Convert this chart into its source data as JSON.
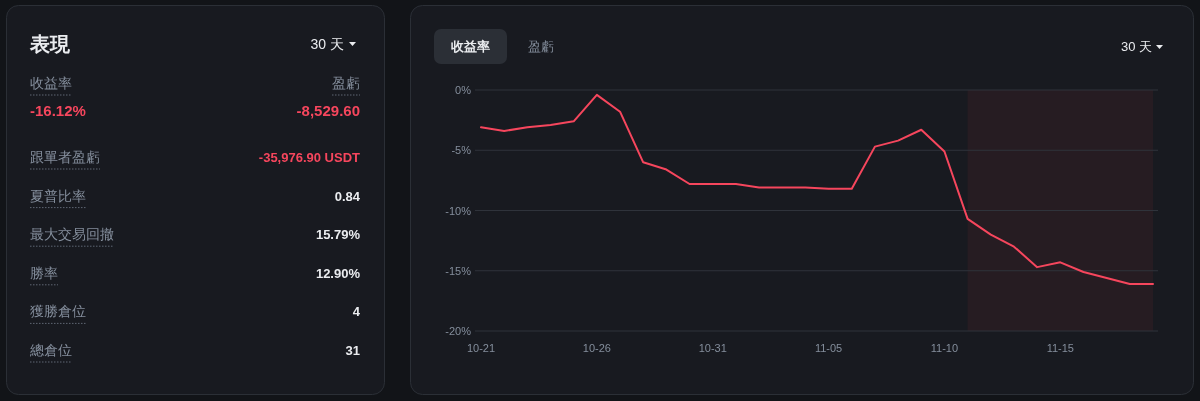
{
  "chart_data": [
    {
      "type": "other",
      "title": "表現",
      "annotations": [
        "30 天",
        "收益率",
        "盈虧",
        "-16.12%",
        "-8,529.60",
        "跟單者盈虧",
        "-35,976.90 USDT",
        "夏普比率",
        "0.84",
        "最大交易回撤",
        "15.79%",
        "勝率",
        "12.90%",
        "獲勝倉位",
        "4",
        "總倉位",
        "31"
      ]
    },
    {
      "type": "line",
      "annotations": [
        "收益率",
        "盈虧",
        "30 天"
      ],
      "x": [
        "--10-21",
        "--10-22",
        "--10-23",
        "--10-24",
        "--10-25",
        "--10-26",
        "--10-27",
        "--10-28",
        "--10-29",
        "--10-30",
        "--10-31",
        "--11-01",
        "--11-02",
        "--11-03",
        "--11-04",
        "--11-05",
        "--11-06",
        "--11-07",
        "--11-08",
        "--11-09",
        "--11-10",
        "--11-11",
        "--11-12",
        "--11-13",
        "--11-14",
        "--11-15",
        "--11-16",
        "--11-17",
        "--11-18",
        "--11-19"
      ],
      "series": [
        {
          "color": "#f6465d",
          "values": [
            -3.1,
            -3.4,
            -3.1,
            -2.9,
            -2.6,
            -0.4,
            -1.8,
            -6.0,
            -6.6,
            -7.8,
            -7.8,
            -7.8,
            -8.1,
            -8.1,
            -8.1,
            -8.2,
            -8.2,
            -4.7,
            -4.2,
            -3.3,
            -5.1,
            -10.7,
            -12.0,
            -13.0,
            -14.7,
            -14.3,
            -15.1,
            -15.6,
            -16.1,
            -16.1
          ]
        }
      ],
      "xlim": [
        "--10-21",
        "--11-19"
      ],
      "xticks": [
        {
          "value": "--10-21",
          "label": "10-21"
        },
        {
          "value": "--10-26",
          "label": "10-26"
        },
        {
          "value": "--10-31",
          "label": "10-31"
        },
        {
          "value": "--11-05",
          "label": "11-05"
        },
        {
          "value": "--11-10",
          "label": "11-10"
        },
        {
          "value": "--11-15",
          "label": "11-15"
        }
      ],
      "ylim": [
        -20,
        0
      ],
      "yticks": [
        {
          "value": 0,
          "label": "0%"
        },
        {
          "value": -5,
          "label": "-5%"
        },
        {
          "value": -10,
          "label": "-10%"
        },
        {
          "value": -15,
          "label": "-15%"
        },
        {
          "value": -20,
          "label": "-20%"
        }
      ],
      "bands": [
        {
          "axis": "x",
          "from": "--11-11",
          "to": "--11-19",
          "color": "#2a1d23"
        }
      ],
      "grid": "y",
      "marker": "none",
      "line_style": "solid"
    }
  ]
}
